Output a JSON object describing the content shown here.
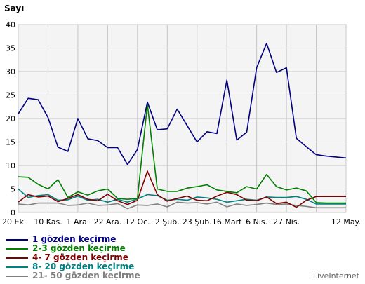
{
  "chart_data": {
    "type": "line",
    "ylabel": "Sayı",
    "ylim": [
      0,
      40
    ],
    "yticks": [
      0,
      5,
      10,
      15,
      20,
      25,
      30,
      35,
      40
    ],
    "grid": true,
    "legend_position": "bottom-left",
    "points": 34,
    "xtick_labels": [
      {
        "index": 0,
        "label": "20 Ek."
      },
      {
        "index": 3,
        "label": "10 Kas."
      },
      {
        "index": 6,
        "label": "1 Ara."
      },
      {
        "index": 9,
        "label": "22 Ara."
      },
      {
        "index": 12,
        "label": "12 Oc."
      },
      {
        "index": 15,
        "label": "2 Şub."
      },
      {
        "index": 18,
        "label": "23 Şub."
      },
      {
        "index": 21,
        "label": "16 Mart"
      },
      {
        "index": 24,
        "label": "6 Nis."
      },
      {
        "index": 27,
        "label": "27 Nis."
      },
      {
        "index": 30,
        "label": "12 May."
      }
    ],
    "series": [
      {
        "name": "1 gözden keçirme",
        "color": "#000080",
        "values": [
          21,
          24.3,
          24,
          20.2,
          13.9,
          13,
          20,
          15.7,
          15.3,
          13.8,
          13.8,
          10.2,
          13.4,
          23.5,
          17.6,
          17.8,
          22,
          18.5,
          15,
          17.2,
          16.8,
          28.2,
          15.4,
          17.1,
          30.8,
          36,
          29.8,
          30.8,
          15.8,
          14,
          12.3,
          12,
          11.8,
          11.6
        ]
      },
      {
        "name": "2-3 gözden keçirme",
        "color": "#008000",
        "values": [
          7.6,
          7.5,
          6,
          5,
          7,
          3.2,
          4.4,
          3.7,
          4.6,
          5,
          3,
          2.8,
          3,
          23,
          5,
          4.5,
          4.5,
          5.2,
          5.5,
          5.9,
          4.8,
          4.5,
          4.2,
          5.5,
          5,
          8.1,
          5.5,
          4.8,
          5.2,
          4.6,
          2.1,
          2,
          2,
          2
        ]
      },
      {
        "name": "4- 7 gözden keçirme",
        "color": "#800000",
        "values": [
          2.2,
          3.8,
          3.3,
          3.5,
          2.3,
          3,
          3.8,
          2.8,
          2.5,
          3.9,
          2.5,
          1.7,
          2.6,
          8.8,
          3.8,
          2.4,
          3,
          3.5,
          2.6,
          2.5,
          3.5,
          4.3,
          3.8,
          2.6,
          2.5,
          3.3,
          1.9,
          2.2,
          1.1,
          2.6,
          3.4,
          3.4,
          3.4,
          3.4
        ]
      },
      {
        "name": "8- 20 gözden keçirme",
        "color": "#008080",
        "values": [
          5,
          3.2,
          3.6,
          3.8,
          2.6,
          2.7,
          3.5,
          2.6,
          2.8,
          2.2,
          2.8,
          2.2,
          2.9,
          3.8,
          3.6,
          2.6,
          2.8,
          2.6,
          3.3,
          3.1,
          2.8,
          2.2,
          2.5,
          2.8,
          2.6,
          3.3,
          3.2,
          3.2,
          3.4,
          2.8,
          1.8,
          1.8,
          1.8,
          1.8
        ]
      },
      {
        "name": "21- 50 gözden keçirme",
        "color": "#808080",
        "values": [
          1.8,
          1.6,
          2,
          2,
          2,
          1.5,
          1.6,
          2,
          1.5,
          1.6,
          1.9,
          0.8,
          1.6,
          1.5,
          1.8,
          1.2,
          2.2,
          2,
          2.1,
          1.8,
          2.2,
          1.2,
          1.8,
          1.5,
          1.7,
          2,
          1.7,
          1.8,
          1.5,
          1.3,
          1,
          1,
          1,
          1
        ]
      }
    ]
  },
  "branding": "LiveInternet"
}
